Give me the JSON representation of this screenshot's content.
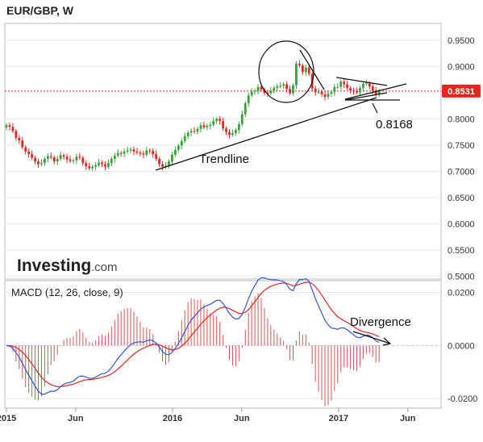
{
  "title": "EUR/GBP, W",
  "logo": {
    "main": "Investing",
    "domain": ".com"
  },
  "chart_data": {
    "type": "candlestick",
    "interval": "W",
    "price_axis": {
      "ticks": [
        "0.9500",
        "0.9000",
        "0.8500",
        "0.8000",
        "0.7500",
        "0.7000",
        "0.6500",
        "0.6000",
        "0.5500",
        "0.5000"
      ],
      "ylim": [
        0.495,
        0.982
      ]
    },
    "time_axis": {
      "labels": [
        "2015",
        "Jun",
        "2016",
        "Jun",
        "2017",
        "Jun"
      ],
      "label_dates": [
        "2015-01",
        "2015-06",
        "2016-01",
        "2016-06",
        "2017-01",
        "2017-06"
      ]
    },
    "current_price": {
      "label": "0.8531",
      "value": 0.8531,
      "color": "#e8261f"
    },
    "colors": {
      "up": "#3aa03a",
      "down": "#e8261f",
      "macd_line": "#3355dd",
      "signal_line": "#e8261f",
      "histogram": "#d9534f"
    },
    "weekly_closes": [
      0.788,
      0.785,
      0.777,
      0.764,
      0.759,
      0.746,
      0.738,
      0.733,
      0.726,
      0.719,
      0.714,
      0.716,
      0.724,
      0.729,
      0.727,
      0.719,
      0.724,
      0.731,
      0.728,
      0.723,
      0.72,
      0.721,
      0.728,
      0.726,
      0.716,
      0.71,
      0.706,
      0.709,
      0.712,
      0.717,
      0.714,
      0.709,
      0.716,
      0.724,
      0.73,
      0.735,
      0.734,
      0.738,
      0.74,
      0.742,
      0.738,
      0.736,
      0.734,
      0.732,
      0.74,
      0.739,
      0.733,
      0.724,
      0.714,
      0.709,
      0.711,
      0.719,
      0.732,
      0.741,
      0.749,
      0.758,
      0.767,
      0.774,
      0.777,
      0.776,
      0.781,
      0.788,
      0.784,
      0.787,
      0.789,
      0.796,
      0.8,
      0.796,
      0.782,
      0.775,
      0.77,
      0.773,
      0.779,
      0.79,
      0.809,
      0.83,
      0.845,
      0.852,
      0.854,
      0.861,
      0.856,
      0.85,
      0.849,
      0.854,
      0.859,
      0.862,
      0.863,
      0.866,
      0.857,
      0.849,
      0.864,
      0.905,
      0.902,
      0.889,
      0.898,
      0.886,
      0.858,
      0.851,
      0.852,
      0.847,
      0.842,
      0.848,
      0.851,
      0.861,
      0.861,
      0.871,
      0.866,
      0.859,
      0.854,
      0.853,
      0.851,
      0.859,
      0.867,
      0.868,
      0.862,
      0.854,
      0.847,
      0.8531
    ],
    "macd": {
      "title": "MACD (12, 26, close, 9)",
      "ticks": [
        "0.0200",
        "0.0000",
        "-0.0200"
      ],
      "ylim": [
        -0.0236,
        0.0244
      ]
    },
    "annotations": {
      "trendline_label": "Trendline",
      "level_label": "0.8168",
      "divergence_label": "Divergence"
    }
  }
}
